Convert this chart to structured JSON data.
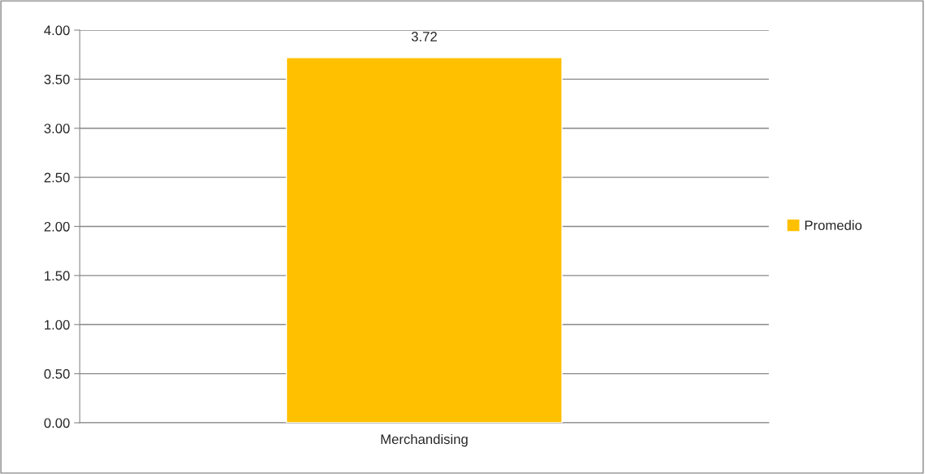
{
  "chart_data": {
    "type": "bar",
    "categories": [
      "Merchandising"
    ],
    "series": [
      {
        "name": "Promedio",
        "color": "#ffc000",
        "values": [
          3.72
        ]
      }
    ],
    "data_labels": true,
    "ylim": [
      0,
      4
    ],
    "yticks": [
      {
        "value": 0,
        "label": "0.00"
      },
      {
        "value": 0.5,
        "label": "0.50"
      },
      {
        "value": 1,
        "label": "1.00"
      },
      {
        "value": 1.5,
        "label": "1.50"
      },
      {
        "value": 2,
        "label": "2.00"
      },
      {
        "value": 2.5,
        "label": "2.50"
      },
      {
        "value": 3,
        "label": "3.00"
      },
      {
        "value": 3.5,
        "label": "3.50"
      },
      {
        "value": 4,
        "label": "4.00"
      }
    ],
    "grid": "y",
    "legend": "right"
  }
}
